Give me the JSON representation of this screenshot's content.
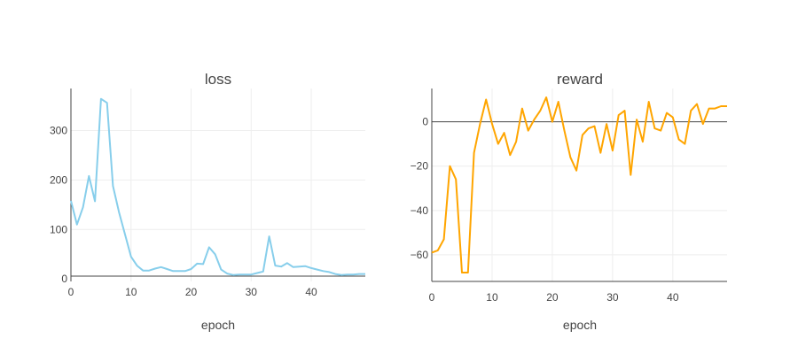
{
  "chart_data": [
    {
      "type": "line",
      "title": "loss",
      "xlabel": "epoch",
      "ylabel": "",
      "color": "#87ceeb",
      "xlim": [
        0,
        49
      ],
      "ylim": [
        -5,
        385
      ],
      "xticks": [
        0,
        10,
        20,
        30,
        40
      ],
      "yticks": [
        0,
        100,
        200,
        300
      ],
      "grid": true,
      "x": [
        0,
        1,
        2,
        3,
        4,
        5,
        6,
        7,
        8,
        9,
        10,
        11,
        12,
        13,
        14,
        15,
        16,
        17,
        18,
        19,
        20,
        21,
        22,
        23,
        24,
        25,
        26,
        27,
        28,
        29,
        30,
        31,
        32,
        33,
        34,
        35,
        36,
        37,
        38,
        39,
        40,
        41,
        42,
        43,
        44,
        45,
        46,
        47,
        48,
        49
      ],
      "series": [
        {
          "values": [
            158,
            110,
            145,
            208,
            157,
            364,
            356,
            188,
            135,
            90,
            45,
            27,
            17,
            17,
            21,
            24,
            20,
            16,
            16,
            16,
            20,
            31,
            30,
            64,
            50,
            19,
            11,
            8,
            9,
            9,
            9,
            12,
            15,
            86,
            27,
            25,
            32,
            24,
            25,
            26,
            22,
            19,
            16,
            14,
            10,
            8,
            9,
            9,
            10,
            10
          ]
        }
      ]
    },
    {
      "type": "line",
      "title": "reward",
      "xlabel": "epoch",
      "ylabel": "",
      "color": "#ffa500",
      "xlim": [
        0,
        49
      ],
      "ylim": [
        -72,
        15
      ],
      "xticks": [
        0,
        10,
        20,
        30,
        40
      ],
      "yticks": [
        0,
        -20,
        -40,
        -60
      ],
      "grid": true,
      "x": [
        0,
        1,
        2,
        3,
        4,
        5,
        6,
        7,
        8,
        9,
        10,
        11,
        12,
        13,
        14,
        15,
        16,
        17,
        18,
        19,
        20,
        21,
        22,
        23,
        24,
        25,
        26,
        27,
        28,
        29,
        30,
        31,
        32,
        33,
        34,
        35,
        36,
        37,
        38,
        39,
        40,
        41,
        42,
        43,
        44,
        45,
        46,
        47,
        48,
        49
      ],
      "series": [
        {
          "values": [
            -59,
            -58,
            -53,
            -20,
            -26,
            -68,
            -68,
            -14,
            -1,
            10,
            -1,
            -10,
            -5,
            -15,
            -9,
            6,
            -4,
            1,
            5,
            11,
            0,
            9,
            -4,
            -16,
            -22,
            -6,
            -3,
            -2,
            -14,
            -1,
            -13,
            3,
            5,
            -24,
            1,
            -9,
            9,
            -3,
            -4,
            4,
            2,
            -8,
            -10,
            5,
            8,
            -1,
            6,
            6,
            7,
            7
          ]
        }
      ]
    }
  ]
}
